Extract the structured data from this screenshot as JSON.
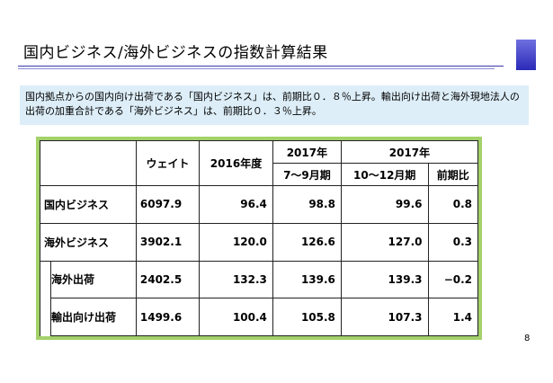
{
  "title": "国内ビジネス/海外ビジネスの指数計算結果",
  "summary": "国内拠点からの国内向け出荷である「国内ビジネス」は、前期比０．８％上昇。輸出向け出荷と海外現地法人の出荷の加重合計である「海外ビジネス」は、前期比０．３％上昇。",
  "table": {
    "headers": {
      "weight": "ウェイト",
      "fy2016": "2016年度",
      "year_a": "2017年",
      "q_a": "7～9月期",
      "year_b": "2017年",
      "q_b": "10～12月期",
      "change": "前期比"
    },
    "rows": [
      {
        "name": "国内ビジネス",
        "weight": "6097.9",
        "fy2016": "96.4",
        "q_a": "98.8",
        "q_b": "99.6",
        "change": "0.8"
      },
      {
        "name": "海外ビジネス",
        "weight": "3902.1",
        "fy2016": "120.0",
        "q_a": "126.6",
        "q_b": "127.0",
        "change": "0.3"
      },
      {
        "name": "海外出荷",
        "weight": "2402.5",
        "fy2016": "132.3",
        "q_a": "139.6",
        "q_b": "139.3",
        "change": "−0.2"
      },
      {
        "name": "輸出向け出荷",
        "weight": "1499.6",
        "fy2016": "100.4",
        "q_a": "105.8",
        "q_b": "107.3",
        "change": "1.4"
      }
    ]
  },
  "page_number": "8",
  "colors": {
    "title_rule": "#3a3aa8",
    "summary_bg": "#ddeef8",
    "table_border": "#a3d16a"
  }
}
